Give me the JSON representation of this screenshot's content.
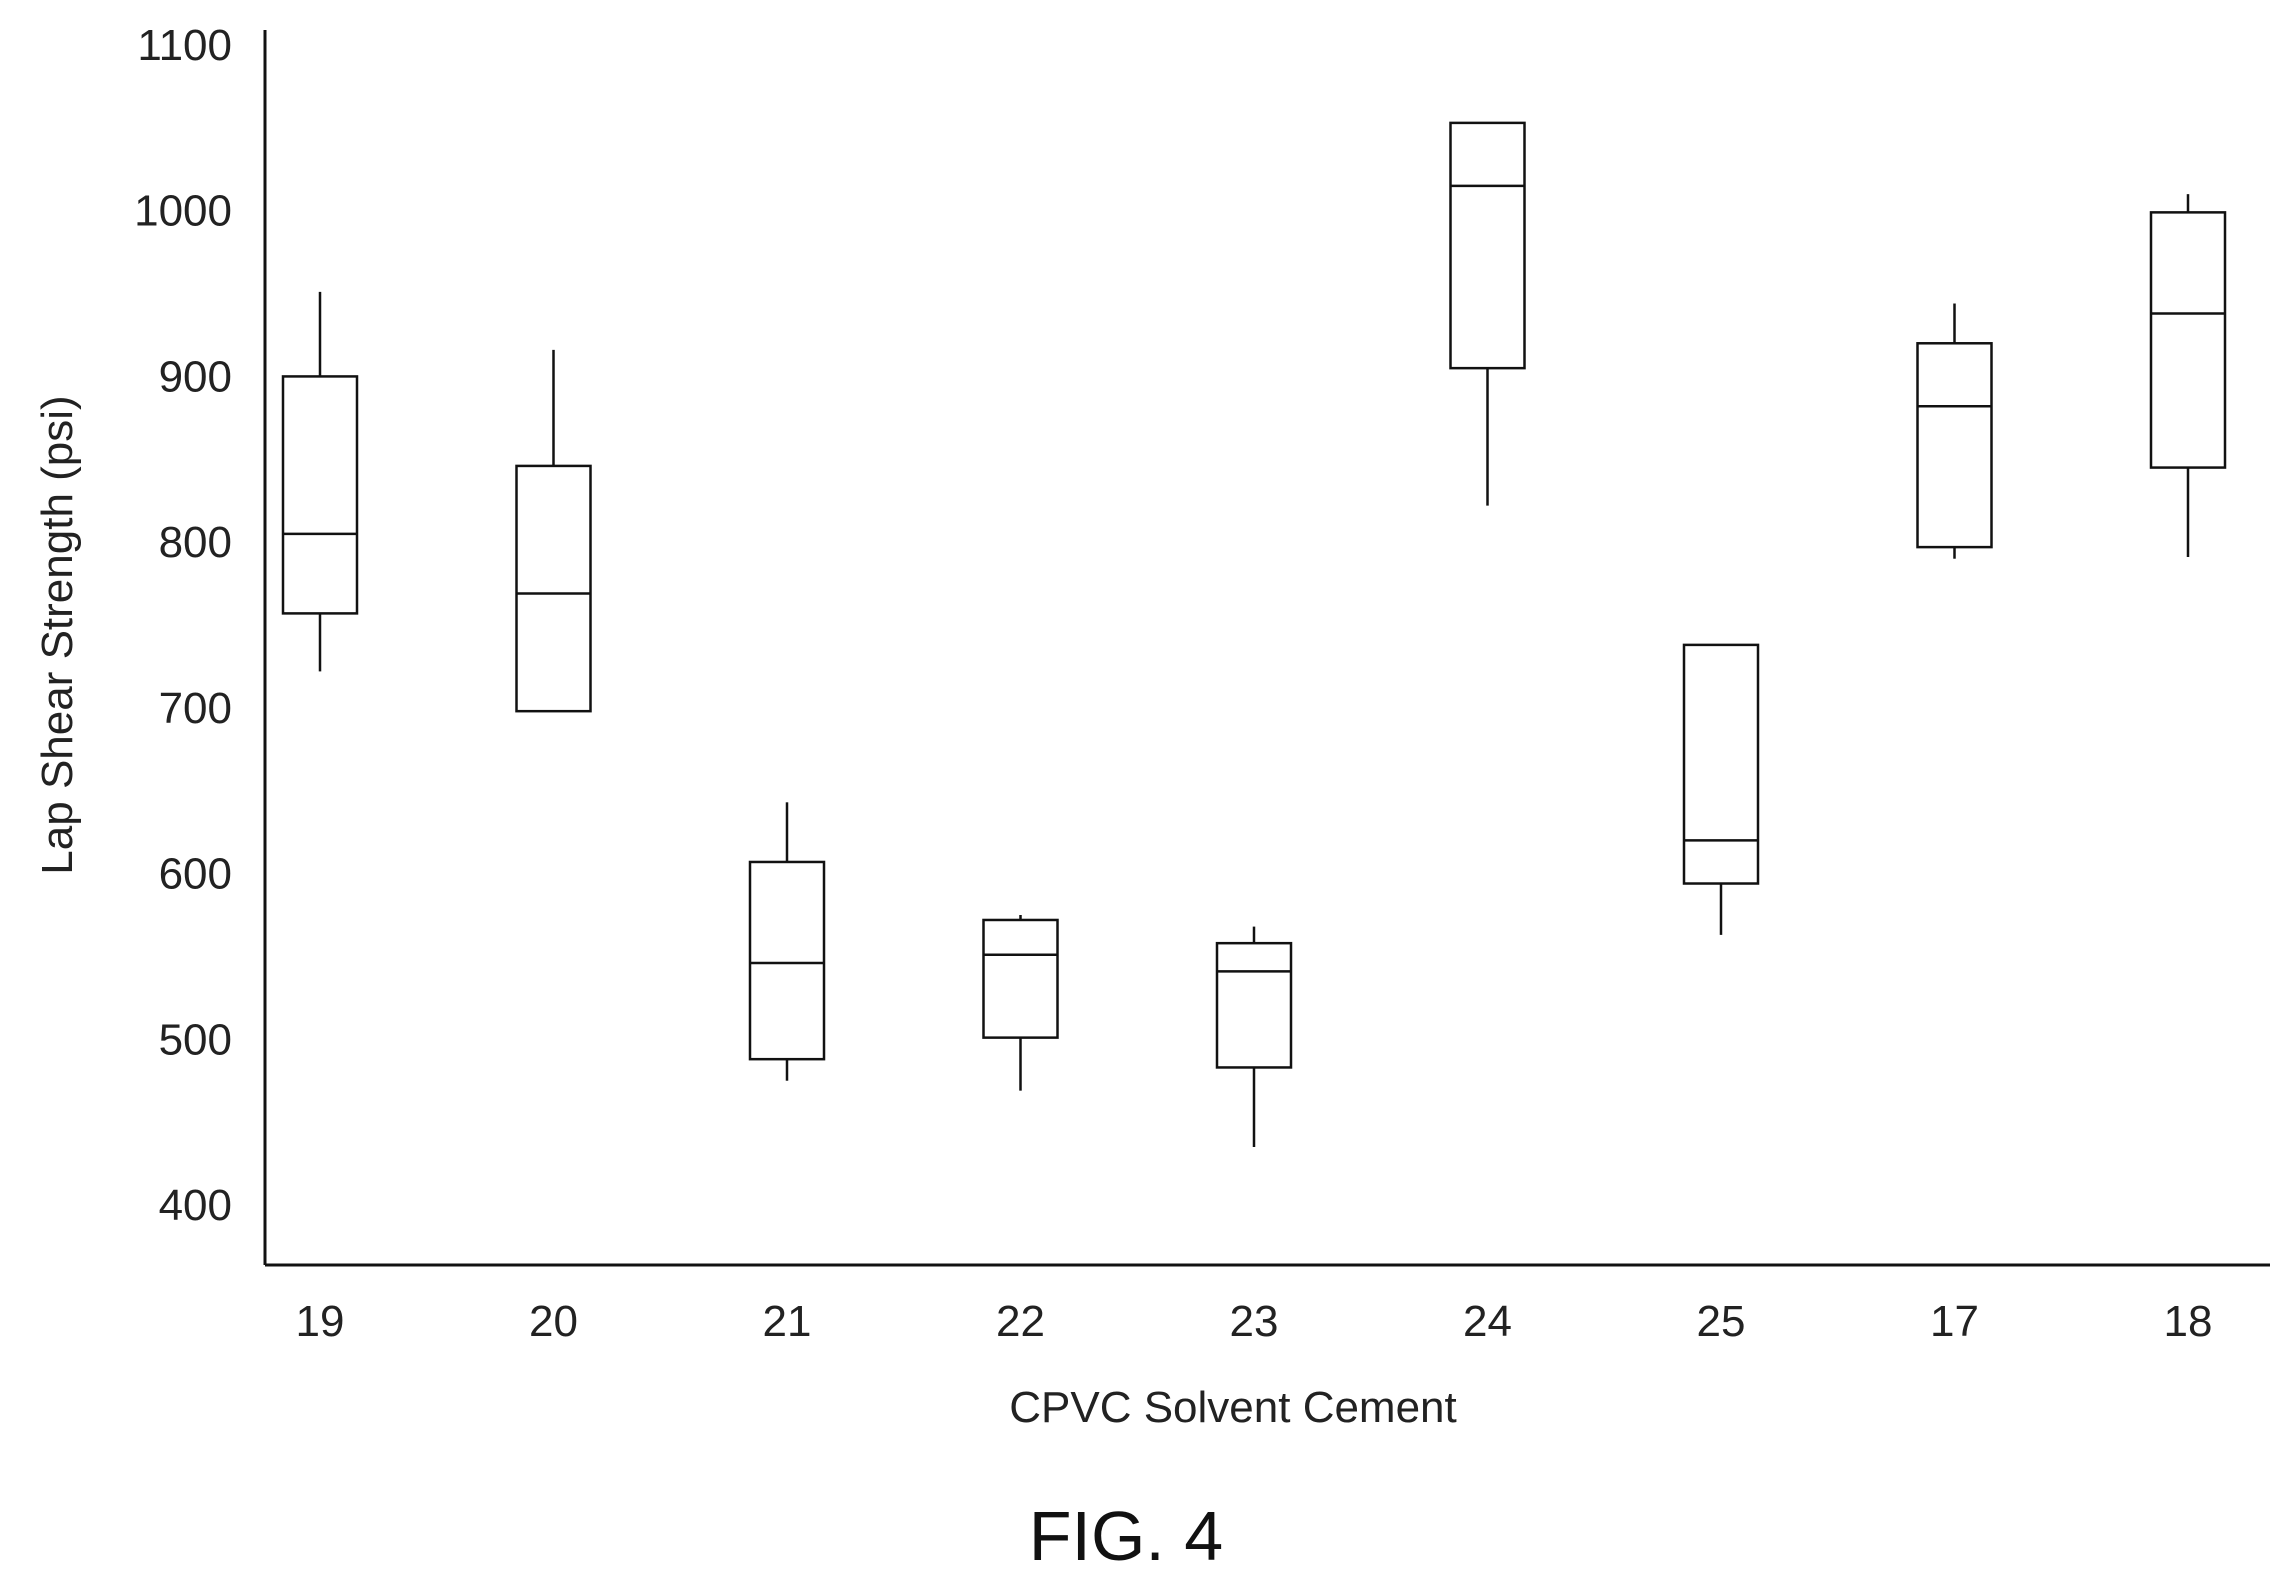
{
  "figure": {
    "caption": "FIG. 4"
  },
  "chart_data": {
    "type": "box",
    "title": "",
    "xlabel": "CPVC Solvent Cement",
    "ylabel": "Lap Shear Strength (psi)",
    "ylim": [
      350,
      1100
    ],
    "yticks": [
      400,
      500,
      600,
      700,
      800,
      900,
      1000,
      1100
    ],
    "grid": false,
    "categories": [
      "19",
      "20",
      "21",
      "22",
      "23",
      "24",
      "25",
      "17",
      "18"
    ],
    "boxes": [
      {
        "category": "19",
        "whisker_low": 722,
        "q1": 757,
        "median": 805,
        "q3": 900,
        "whisker_high": 951
      },
      {
        "category": "20",
        "whisker_low": 698,
        "q1": 698,
        "median": 769,
        "q3": 846,
        "whisker_high": 916
      },
      {
        "category": "21",
        "whisker_low": 475,
        "q1": 488,
        "median": 546,
        "q3": 607,
        "whisker_high": 643
      },
      {
        "category": "22",
        "whisker_low": 469,
        "q1": 501,
        "median": 551,
        "q3": 572,
        "whisker_high": 575
      },
      {
        "category": "23",
        "whisker_low": 435,
        "q1": 483,
        "median": 541,
        "q3": 558,
        "whisker_high": 568
      },
      {
        "category": "24",
        "whisker_low": 822,
        "q1": 905,
        "median": 1015,
        "q3": 1053,
        "whisker_high": 1053
      },
      {
        "category": "25",
        "whisker_low": 563,
        "q1": 594,
        "median": 620,
        "q3": 738,
        "whisker_high": 738
      },
      {
        "category": "17",
        "whisker_low": 790,
        "q1": 797,
        "median": 882,
        "q3": 920,
        "whisker_high": 944
      },
      {
        "category": "18",
        "whisker_low": 791,
        "q1": 845,
        "median": 938,
        "q3": 999,
        "whisker_high": 1010
      }
    ]
  }
}
